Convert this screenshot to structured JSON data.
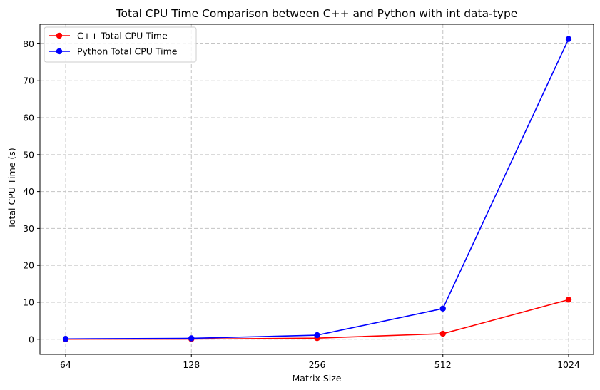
{
  "chart_data": {
    "type": "line",
    "title": "Total CPU Time Comparison between C++ and Python with int data-type",
    "xlabel": "Matrix Size",
    "ylabel": "Total CPU Time (s)",
    "categories": [
      "64",
      "128",
      "256",
      "512",
      "1024"
    ],
    "ylim": [
      -4.1,
      85.3
    ],
    "yticks": [
      0,
      10,
      20,
      30,
      40,
      50,
      60,
      70,
      80
    ],
    "grid": true,
    "legend_position": "top-left",
    "series": [
      {
        "name": "C++ Total CPU Time",
        "color": "#ff0000",
        "values": [
          0.02,
          0.05,
          0.3,
          1.5,
          10.7
        ]
      },
      {
        "name": "Python Total CPU Time",
        "color": "#0000ff",
        "values": [
          0.1,
          0.25,
          1.1,
          8.3,
          81.3
        ]
      }
    ]
  }
}
